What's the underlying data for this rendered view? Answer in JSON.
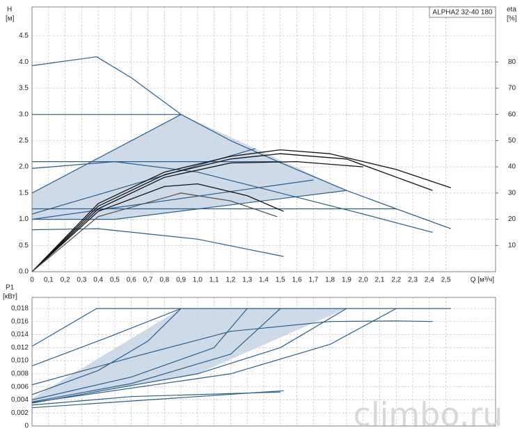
{
  "watermark": "climbo.ru",
  "chart_data": [
    {
      "type": "line",
      "title": "ALPHA2 32-40 180",
      "ylabel": "H",
      "yunit": "[м]",
      "y2label": "eta",
      "y2unit": "[%]",
      "xlabel": "Q [м³/ч]",
      "xlim": [
        0,
        2.8
      ],
      "ylim": [
        0,
        5.05
      ],
      "y2lim": [
        0,
        101
      ],
      "xticks": [
        0,
        {
          "value": 0.1,
          "label": "0,1"
        },
        {
          "value": 0.2,
          "label": "0,2"
        },
        {
          "value": 0.3,
          "label": "0,3"
        },
        {
          "value": 0.4,
          "label": "0,4"
        },
        {
          "value": 0.5,
          "label": "0,5"
        },
        {
          "value": 0.6,
          "label": "0,6"
        },
        {
          "value": 0.7,
          "label": "0,7"
        },
        {
          "value": 0.8,
          "label": "0,8"
        },
        {
          "value": 0.9,
          "label": "0,9"
        },
        {
          "value": 1.0,
          "label": "1,0"
        },
        {
          "value": 1.1,
          "label": "1,1"
        },
        {
          "value": 1.2,
          "label": "1,2"
        },
        {
          "value": 1.3,
          "label": "1,3"
        },
        {
          "value": 1.4,
          "label": "1,4"
        },
        {
          "value": 1.5,
          "label": "1,5"
        },
        {
          "value": 1.6,
          "label": "1,6"
        },
        {
          "value": 1.7,
          "label": "1,7"
        },
        {
          "value": 1.8,
          "label": "1,8"
        },
        {
          "value": 1.9,
          "label": "1,9"
        },
        {
          "value": 2.0,
          "label": "2,0"
        },
        {
          "value": 2.1,
          "label": "2,1"
        },
        {
          "value": 2.2,
          "label": "2,2"
        },
        {
          "value": 2.3,
          "label": "2,3"
        },
        {
          "value": 2.4,
          "label": "2,4"
        },
        {
          "value": 2.5,
          "label": "2,5"
        }
      ],
      "yticks": [
        {
          "value": 0,
          "label": "0.0"
        },
        0.5,
        {
          "value": 1,
          "label": "1.0"
        },
        1.5,
        {
          "value": 2,
          "label": "2.0"
        },
        2.5,
        {
          "value": 3,
          "label": "3.0"
        },
        3.5,
        {
          "value": 4,
          "label": "4.0"
        },
        4.5
      ],
      "y2ticks": [
        10,
        20,
        30,
        40,
        50,
        60,
        70,
        80
      ],
      "grid": true,
      "areas": [
        {
          "color": "#c6d4e3",
          "x": [
            0,
            0.9,
            1.9,
            0.5,
            0
          ],
          "values": [
            1.5,
            3.0,
            1.55,
            1.0,
            1.0
          ]
        }
      ],
      "series": [
        {
          "color": "#2b5d8a",
          "x": [
            0,
            0.39,
            0.6,
            0.9,
            1.2,
            1.5,
            1.9,
            2.2,
            2.53
          ],
          "values": [
            3.93,
            4.1,
            3.7,
            3.0,
            2.5,
            2.08,
            1.55,
            1.2,
            0.82
          ]
        },
        {
          "color": "#2b5d8a",
          "x": [
            0,
            0.9
          ],
          "values": [
            3.0,
            3.0
          ]
        },
        {
          "color": "#2b5d8a",
          "x": [
            0,
            1.5
          ],
          "values": [
            2.1,
            2.1
          ]
        },
        {
          "color": "#2b5d8a",
          "x": [
            0,
            2.2
          ],
          "values": [
            1.2,
            1.2
          ]
        },
        {
          "color": "#2b5d8a",
          "x": [
            0,
            0.9
          ],
          "values": [
            1.5,
            3.0
          ]
        },
        {
          "color": "#2b5d8a",
          "x": [
            0,
            1.35
          ],
          "values": [
            1.1,
            2.35
          ]
        },
        {
          "color": "#2b5d8a",
          "x": [
            0,
            1.7
          ],
          "values": [
            1.0,
            1.75
          ]
        },
        {
          "color": "#2b5d8a",
          "x": [
            0,
            0.5,
            1.9
          ],
          "values": [
            1.0,
            1.0,
            1.55
          ]
        },
        {
          "color": "#2b5d8a",
          "x": [
            0,
            0.5,
            1.0,
            1.5,
            2.0,
            2.42
          ],
          "values": [
            1.97,
            2.1,
            1.9,
            1.5,
            1.1,
            0.75
          ]
        },
        {
          "color": "#2b5d8a",
          "x": [
            0,
            0.4,
            1.0,
            1.52
          ],
          "values": [
            0.8,
            0.82,
            0.62,
            0.29
          ]
        },
        {
          "color": "#111111",
          "axis": "y2",
          "x": [
            0,
            0.4,
            0.8,
            1.2,
            1.5,
            1.8,
            2.2,
            2.53
          ],
          "values": [
            0,
            26,
            38,
            44,
            46.5,
            45,
            39,
            32
          ]
        },
        {
          "color": "#111111",
          "axis": "y2",
          "x": [
            0,
            0.4,
            0.8,
            1.2,
            1.5,
            1.9,
            2.42
          ],
          "values": [
            0,
            25,
            37,
            43,
            45,
            43,
            31
          ]
        },
        {
          "color": "#111111",
          "axis": "y2",
          "x": [
            0,
            0.4,
            0.8,
            1.2,
            1.6,
            2.0
          ],
          "values": [
            0,
            24,
            36,
            41.5,
            42,
            40
          ]
        },
        {
          "color": "#111111",
          "axis": "y2",
          "x": [
            0,
            0.4,
            0.8,
            1.0,
            1.3,
            1.52
          ],
          "values": [
            0,
            23,
            32.5,
            33.5,
            29,
            23
          ]
        },
        {
          "color": "#555555",
          "axis": "y2",
          "x": [
            0,
            0.4,
            0.9,
            1.2,
            1.48
          ],
          "values": [
            0,
            21,
            30,
            27,
            21
          ]
        }
      ]
    },
    {
      "type": "line",
      "ylabel": "P1",
      "yunit": "[кВт]",
      "xlim": [
        0,
        2.8
      ],
      "ylim": [
        0,
        0.0197
      ],
      "xgrid": [
        0.1,
        0.2,
        0.3,
        0.4,
        0.5,
        0.6,
        0.7,
        0.8,
        0.9,
        1.0,
        1.1,
        1.2,
        1.3,
        1.4,
        1.5,
        1.6,
        1.7,
        1.8,
        1.9,
        2.0,
        2.1,
        2.2,
        2.3,
        2.4,
        2.5
      ],
      "yticks": [
        0,
        {
          "value": 0.002,
          "label": "0,002"
        },
        {
          "value": 0.004,
          "label": "0,004"
        },
        {
          "value": 0.006,
          "label": "0,006"
        },
        {
          "value": 0.008,
          "label": "0,008"
        },
        {
          "value": 0.01,
          "label": "0,010"
        },
        {
          "value": 0.012,
          "label": "0,012"
        },
        {
          "value": 0.014,
          "label": "0,014"
        },
        {
          "value": 0.016,
          "label": "0,016"
        },
        {
          "value": 0.018,
          "label": "0,018"
        }
      ],
      "grid": true,
      "areas": [
        {
          "color": "#c6d4e3",
          "x": [
            0,
            0.9,
            1.9,
            1.0,
            0
          ],
          "values": [
            0.0042,
            0.018,
            0.018,
            0.008,
            0.0036
          ]
        }
      ],
      "series": [
        {
          "color": "#2b5d8a",
          "x": [
            0,
            0.39,
            2.53
          ],
          "values": [
            0.0122,
            0.018,
            0.018
          ]
        },
        {
          "color": "#2b5d8a",
          "x": [
            0,
            0.45,
            0.9
          ],
          "values": [
            0.0092,
            0.0135,
            0.018
          ]
        },
        {
          "color": "#2b5d8a",
          "x": [
            0,
            0.4,
            0.7,
            0.9
          ],
          "values": [
            0.0048,
            0.0085,
            0.013,
            0.018
          ]
        },
        {
          "color": "#2b5d8a",
          "x": [
            0,
            0.6,
            1.2,
            1.8,
            2.2,
            2.42
          ],
          "values": [
            0.0063,
            0.0105,
            0.0145,
            0.016,
            0.0161,
            0.016
          ]
        },
        {
          "color": "#2b5d8a",
          "x": [
            0,
            0.6,
            1.1,
            1.3
          ],
          "values": [
            0.004,
            0.0075,
            0.012,
            0.018
          ]
        },
        {
          "color": "#2b5d8a",
          "x": [
            0,
            0.6,
            1.2,
            1.5
          ],
          "values": [
            0.0037,
            0.0065,
            0.011,
            0.018
          ]
        },
        {
          "color": "#2b5d8a",
          "x": [
            0,
            1.0,
            1.5,
            1.9
          ],
          "values": [
            0.0035,
            0.008,
            0.012,
            0.018
          ]
        },
        {
          "color": "#2b5d8a",
          "x": [
            0,
            1.2,
            1.8,
            2.2
          ],
          "values": [
            0.0036,
            0.008,
            0.0125,
            0.018
          ]
        },
        {
          "color": "#2b5d8a",
          "x": [
            0,
            1.0,
            1.52
          ],
          "values": [
            0.0028,
            0.0045,
            0.0054
          ]
        },
        {
          "color": "#2b5d8a",
          "x": [
            0,
            0.6,
            1.5
          ],
          "values": [
            0.0032,
            0.0045,
            0.0052
          ]
        }
      ]
    }
  ]
}
